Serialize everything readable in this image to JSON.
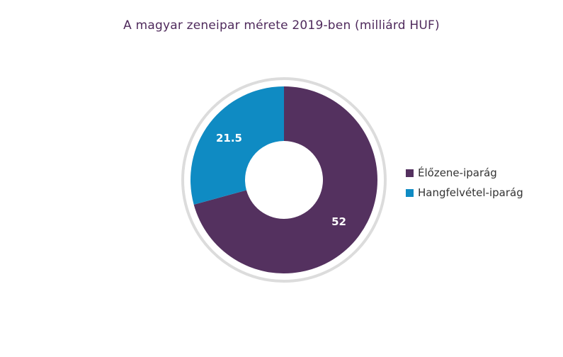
{
  "chart_data": {
    "type": "pie",
    "title": "A magyar zeneipar mérete 2019-ben (milliárd HUF)",
    "categories": [
      "Élőzene-iparág",
      "Hangfelvétel-iparág"
    ],
    "values": [
      52,
      21.5
    ],
    "value_labels": [
      "52",
      "21.5"
    ],
    "colors": [
      "#54315f",
      "#0f8bc3"
    ],
    "outer_ring_color": "#dcdcdc",
    "donut": true,
    "legend_position": "right"
  }
}
